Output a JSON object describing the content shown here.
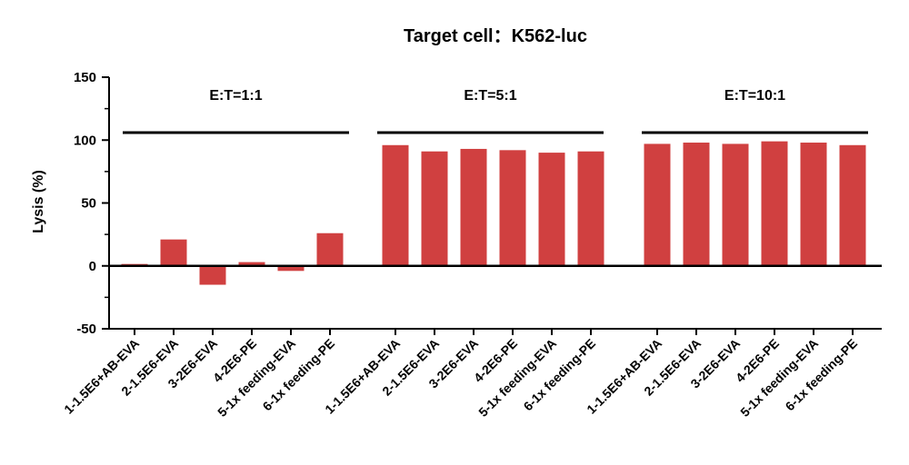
{
  "chart_data": {
    "type": "bar",
    "title": "Target cell：K562-luc",
    "ylabel": "Lysis (%)",
    "xlabel": "",
    "ylim": [
      -50,
      150
    ],
    "yticks": [
      -50,
      0,
      50,
      100,
      150
    ],
    "bar_color": "#d04040",
    "groups": [
      {
        "label": "E:T=1:1",
        "categories": [
          "1-1.5E6+AB-EVA",
          "2-1.5E6-EVA",
          "3-2E6-EVA",
          "4-2E6-PE",
          "5-1x feeding-EVA",
          "6-1x feeding-PE"
        ],
        "values": [
          1.5,
          21,
          -15,
          3,
          -4,
          26
        ]
      },
      {
        "label": "E:T=5:1",
        "categories": [
          "1-1.5E6+AB-EVA",
          "2-1.5E6-EVA",
          "3-2E6-EVA",
          "4-2E6-PE",
          "5-1x feeding-EVA",
          "6-1x feeding-PE"
        ],
        "values": [
          96,
          91,
          93,
          92,
          90,
          91
        ]
      },
      {
        "label": "E:T=10:1",
        "categories": [
          "1-1.5E6+AB-EVA",
          "2-1.5E6-EVA",
          "3-2E6-EVA",
          "4-2E6-PE",
          "5-1x feeding-EVA",
          "6-1x feeding-PE"
        ],
        "values": [
          97,
          98,
          97,
          99,
          98,
          96
        ]
      }
    ]
  }
}
